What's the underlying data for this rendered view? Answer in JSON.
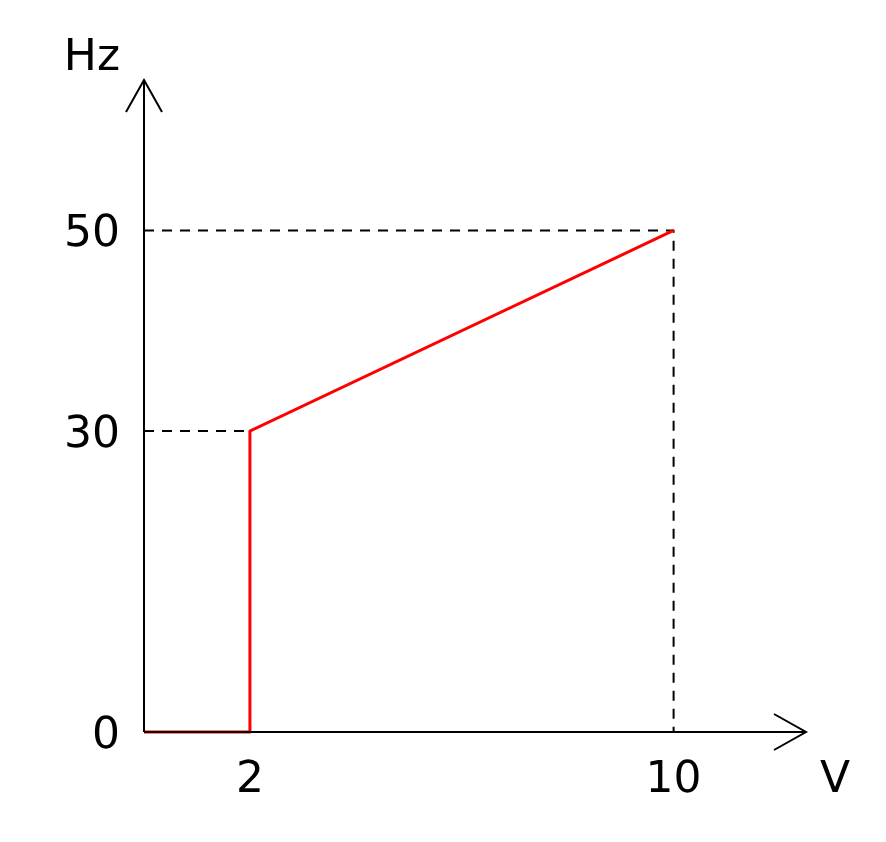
{
  "chart_data": {
    "type": "line",
    "xlabel": "V",
    "ylabel": "Hz",
    "xlim": [
      0,
      12.5
    ],
    "ylim": [
      0,
      65
    ],
    "xticks": [
      2,
      10
    ],
    "yticks": [
      0,
      30,
      50
    ],
    "grid": false,
    "series": [
      {
        "color": "#ff0000",
        "x": [
          0,
          2,
          2,
          10
        ],
        "values": [
          0,
          0,
          30,
          50
        ],
        "line_style": "solid"
      },
      {
        "color": "#000000",
        "x": [
          0,
          2
        ],
        "values": [
          30,
          30
        ],
        "line_style": "dashed"
      },
      {
        "color": "#000000",
        "x": [
          0,
          10,
          10
        ],
        "values": [
          50,
          50,
          0
        ],
        "line_style": "dashed"
      }
    ]
  }
}
